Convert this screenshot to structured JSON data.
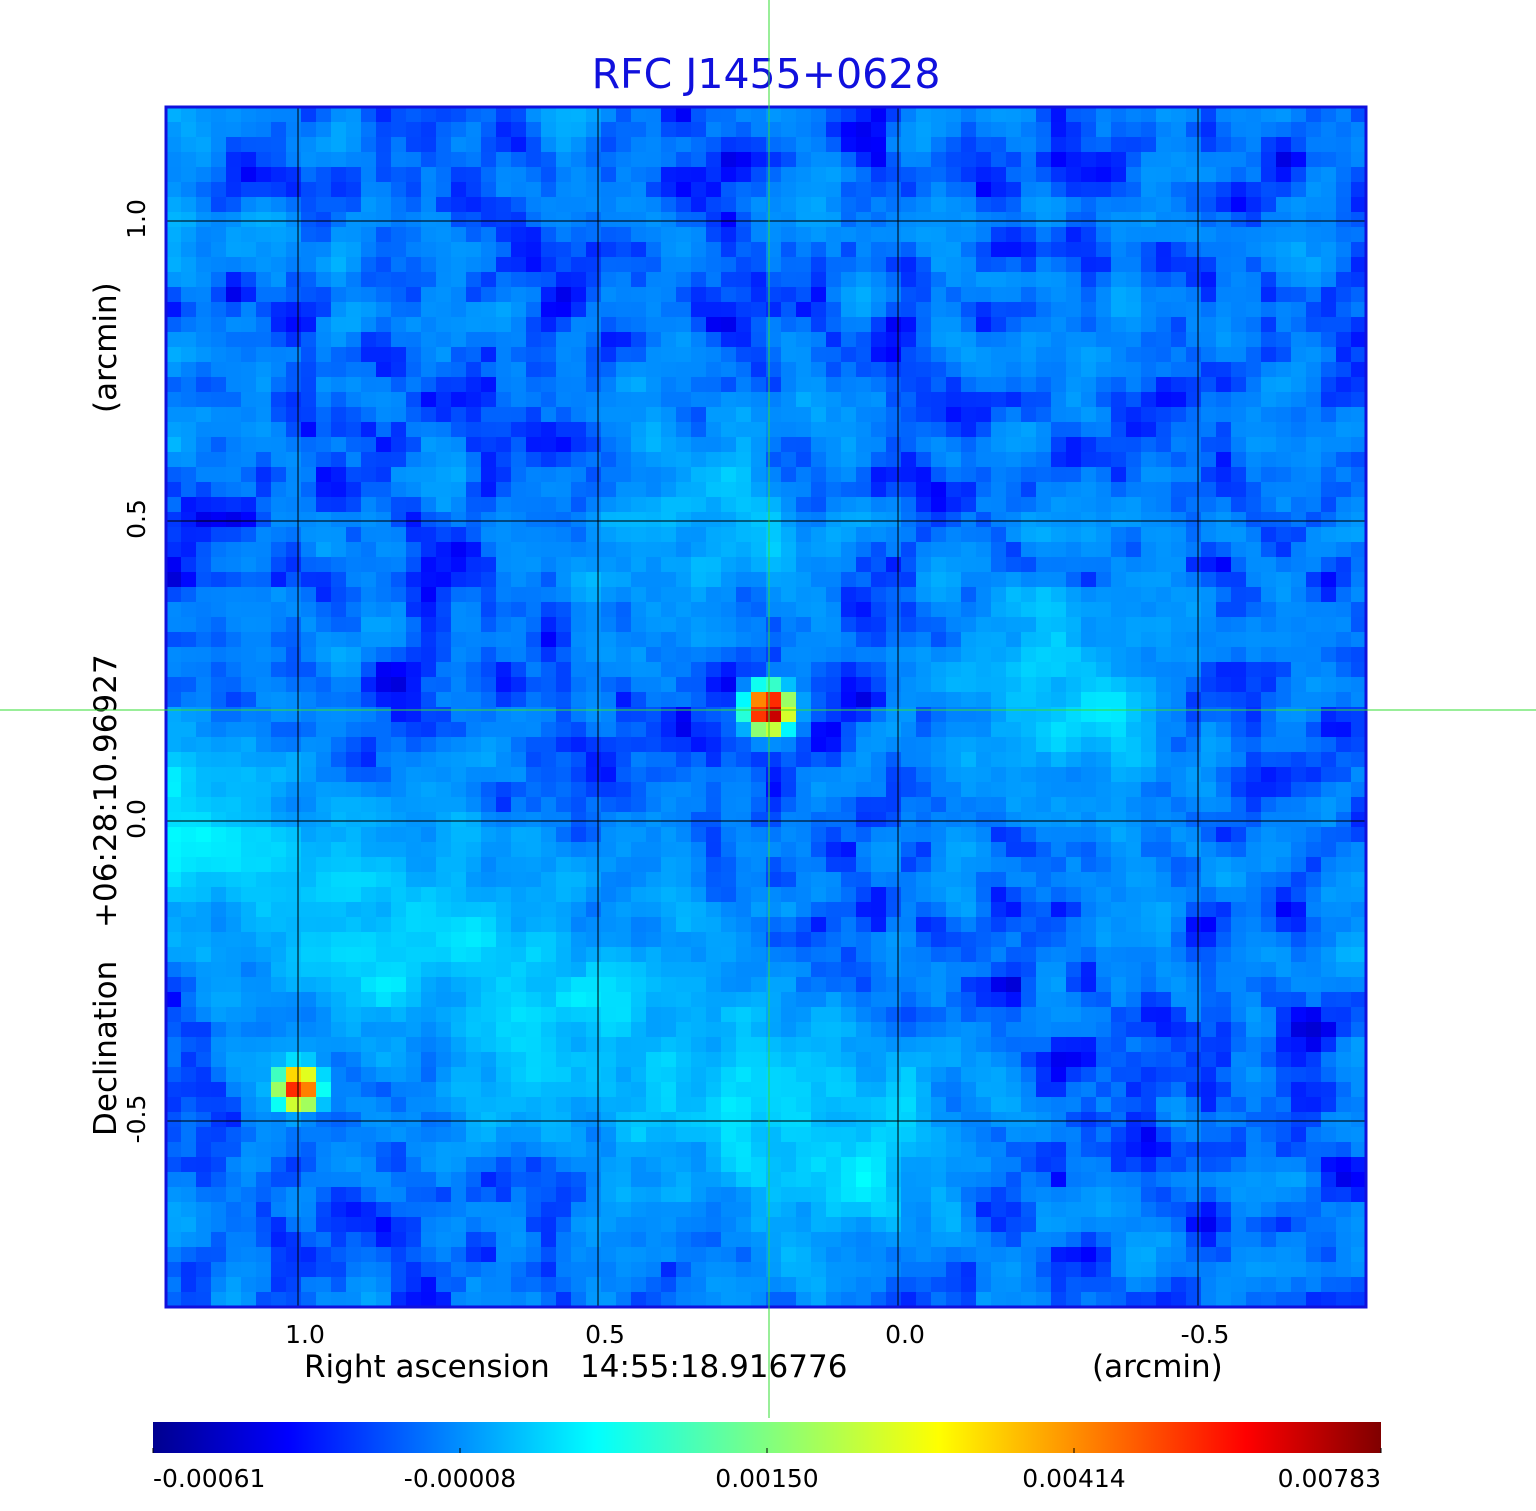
{
  "chart_data": {
    "type": "heatmap",
    "title": "RFC J1455+0628",
    "colors": {
      "title": "#1010dd",
      "frame": "#1010dd",
      "grid": "#000000",
      "crosshair": "#33dd33",
      "colormap": "jet"
    },
    "x_axis": {
      "label": "Right ascension",
      "center_value": "14:55:18.916776",
      "unit": "(arcmin)",
      "range": [
        1.22,
        -0.78
      ],
      "ticks": [
        1.0,
        0.5,
        0.0,
        -0.5
      ],
      "tick_labels": [
        "1.0",
        "0.5",
        "0.0",
        "-0.5"
      ],
      "direction": "decreasing-right"
    },
    "y_axis": {
      "label": "Declination",
      "center_value": "+06:28:10.96927",
      "unit": "(arcmin)",
      "range": [
        -0.81,
        1.19
      ],
      "ticks": [
        1.0,
        0.5,
        0.0,
        -0.5
      ],
      "tick_labels": [
        "1.0",
        "0.5",
        "0.0",
        "-0.5"
      ]
    },
    "grid": true,
    "crosshair": {
      "x": 0.215,
      "y": 0.185
    },
    "sources": [
      {
        "name": "peak",
        "x": 0.215,
        "y": 0.185,
        "value": 0.00783
      },
      {
        "name": "secondary",
        "x": 1.0,
        "y": -0.445,
        "value": 0.0058
      }
    ],
    "diffuse_features": [
      {
        "type": "band",
        "from": [
          1.22,
          0.0
        ],
        "to": [
          0.1,
          -0.55
        ],
        "amplitude": 0.0005
      },
      {
        "type": "blob",
        "x": -0.3,
        "y": 0.22,
        "amplitude": 0.0005
      },
      {
        "type": "blob",
        "x": 0.3,
        "y": 0.5,
        "amplitude": 0.00035
      }
    ],
    "colorbar": {
      "min": -0.00061,
      "max": 0.00783,
      "ticks": [
        -0.00061,
        -8e-05,
        0.0015,
        0.00414,
        0.00783
      ],
      "tick_labels": [
        "-0.00061",
        "-0.00008",
        "0.00150",
        "0.00414",
        "0.00783"
      ],
      "placement": "bottom",
      "scale": "nonlinear"
    }
  }
}
